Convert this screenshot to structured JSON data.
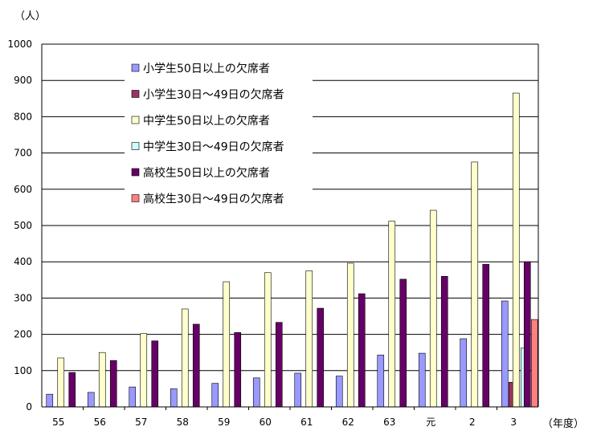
{
  "chart_data": {
    "type": "bar",
    "ylabel": "（人）",
    "xlabel": "（年度）",
    "ylim": [
      0,
      1000
    ],
    "yticks": [
      "0",
      "100",
      "200",
      "300",
      "400",
      "500",
      "600",
      "700",
      "800",
      "900",
      "1000"
    ],
    "categories": [
      "55",
      "56",
      "57",
      "58",
      "59",
      "60",
      "61",
      "62",
      "63",
      "元",
      "2",
      "3"
    ],
    "grid": true,
    "legend_position": "top-left",
    "series": [
      {
        "name": "小学生50日以上の欠席者",
        "color": "#9999FF",
        "values": [
          35,
          40,
          55,
          50,
          65,
          80,
          93,
          85,
          143,
          148,
          188,
          292
        ]
      },
      {
        "name": "小学生30日～49日の欠席者",
        "color": "#993366",
        "values": [
          null,
          null,
          null,
          null,
          null,
          null,
          null,
          null,
          null,
          null,
          null,
          68
        ]
      },
      {
        "name": "中学生50日以上の欠席者",
        "color": "#FFFFCC",
        "values": [
          135,
          150,
          202,
          270,
          345,
          370,
          375,
          396,
          512,
          542,
          675,
          865
        ]
      },
      {
        "name": "中学生30日～49日の欠席者",
        "color": "#CCFFFF",
        "values": [
          null,
          null,
          null,
          null,
          null,
          null,
          null,
          null,
          null,
          null,
          null,
          162
        ]
      },
      {
        "name": "高校生50日以上の欠席者",
        "color": "#660066",
        "values": [
          95,
          128,
          182,
          228,
          205,
          233,
          272,
          312,
          352,
          360,
          393,
          400
        ]
      },
      {
        "name": "高校生30日～49日の欠席者",
        "color": "#FF8080",
        "values": [
          null,
          null,
          null,
          null,
          null,
          null,
          null,
          null,
          null,
          null,
          null,
          241
        ]
      }
    ]
  }
}
